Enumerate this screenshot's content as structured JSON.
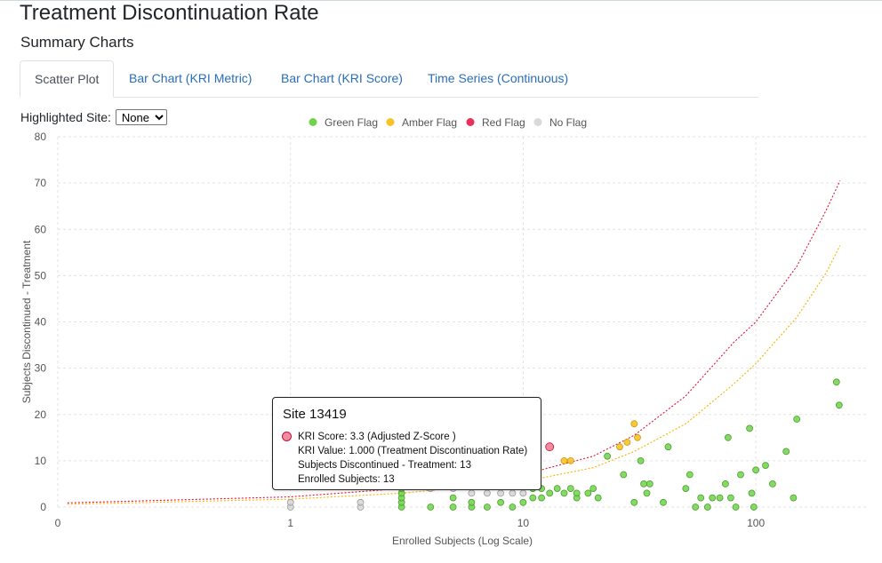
{
  "page": {
    "title": "Treatment Discontinuation Rate",
    "subtitle": "Summary Charts"
  },
  "tabs": [
    {
      "label": "Scatter Plot",
      "active": true
    },
    {
      "label": "Bar Chart (KRI Metric)",
      "active": false
    },
    {
      "label": "Bar Chart (KRI Score)",
      "active": false
    },
    {
      "label": "Time Series (Continuous)",
      "active": false
    }
  ],
  "site_filter": {
    "label": "Highlighted Site:",
    "selected": "None"
  },
  "colors": {
    "green": "#6fd44a",
    "green_stroke": "#4a9e2e",
    "amber": "#f7c325",
    "amber_stroke": "#c99a10",
    "red": "#f28b9f",
    "red_stroke": "#c0143c",
    "grey": "#cfcfcf",
    "grey_stroke": "#9a9a9a",
    "red_line": "#dc143c",
    "amber_line": "#f5b400",
    "tab_link": "#2a6ebb"
  },
  "tooltip": {
    "title": "Site 13419",
    "lines": [
      "KRI Score: 3.3 (Adjusted Z-Score )",
      "KRI Value: 1.000 (Treatment Discontinuation Rate)",
      "Subjects Discontinued - Treatment: 13",
      "Enrolled Subjects: 13"
    ]
  },
  "chart_data": {
    "type": "scatter",
    "xlabel": "Enrolled Subjects (Log Scale)",
    "ylabel": "Subjects Discontinued - Treatment",
    "x_scale": "log",
    "xlim": [
      0.1,
      300
    ],
    "ylim": [
      0,
      80
    ],
    "x_ticks": [
      {
        "value": 0.1,
        "label": "0"
      },
      {
        "value": 1,
        "label": "1"
      },
      {
        "value": 10,
        "label": "10"
      },
      {
        "value": 100,
        "label": "100"
      }
    ],
    "y_ticks": [
      0,
      10,
      20,
      30,
      40,
      50,
      60,
      70,
      80
    ],
    "grid": true,
    "legend_position": "top-center",
    "legend": [
      {
        "name": "Green Flag",
        "color": "#6fd44a"
      },
      {
        "name": "Amber Flag",
        "color": "#f7c325"
      },
      {
        "name": "Red Flag",
        "color": "#e8305a"
      },
      {
        "name": "No Flag",
        "color": "#d9d9d9"
      }
    ],
    "threshold_lines": [
      {
        "name": "red",
        "points": [
          [
            0.11,
            0.9
          ],
          [
            1,
            2.2
          ],
          [
            3,
            4.0
          ],
          [
            10,
            7.0
          ],
          [
            20,
            11.0
          ],
          [
            30,
            15.5
          ],
          [
            50,
            24.0
          ],
          [
            80,
            35.5
          ],
          [
            100,
            40.0
          ],
          [
            150,
            52.0
          ],
          [
            200,
            64.0
          ],
          [
            230,
            70.5
          ]
        ]
      },
      {
        "name": "amber",
        "points": [
          [
            0.11,
            0.6
          ],
          [
            1,
            1.7
          ],
          [
            3,
            3.0
          ],
          [
            10,
            5.5
          ],
          [
            20,
            8.5
          ],
          [
            30,
            12.0
          ],
          [
            50,
            18.0
          ],
          [
            80,
            26.5
          ],
          [
            100,
            31.0
          ],
          [
            150,
            41.0
          ],
          [
            200,
            50.5
          ],
          [
            230,
            56.5
          ]
        ]
      }
    ],
    "series": [
      {
        "name": "Green Flag",
        "points": [
          [
            3,
            0
          ],
          [
            3,
            1
          ],
          [
            3,
            2
          ],
          [
            3,
            3
          ],
          [
            3,
            4
          ],
          [
            4,
            0
          ],
          [
            5,
            0
          ],
          [
            5,
            2
          ],
          [
            6,
            0
          ],
          [
            6,
            1
          ],
          [
            7,
            0
          ],
          [
            8,
            1
          ],
          [
            9,
            0
          ],
          [
            10,
            1
          ],
          [
            11,
            2
          ],
          [
            11,
            4
          ],
          [
            11,
            7
          ],
          [
            12,
            2
          ],
          [
            12,
            4
          ],
          [
            13,
            3
          ],
          [
            14,
            4
          ],
          [
            15,
            3
          ],
          [
            16,
            4
          ],
          [
            17,
            2
          ],
          [
            17,
            3
          ],
          [
            19,
            3
          ],
          [
            20,
            4
          ],
          [
            21,
            2
          ],
          [
            23,
            11
          ],
          [
            27,
            7
          ],
          [
            30,
            1
          ],
          [
            32,
            10
          ],
          [
            33,
            5
          ],
          [
            34,
            3
          ],
          [
            35,
            5
          ],
          [
            40,
            1
          ],
          [
            42,
            13
          ],
          [
            50,
            4
          ],
          [
            52,
            7
          ],
          [
            55,
            0
          ],
          [
            58,
            2
          ],
          [
            62,
            0
          ],
          [
            65,
            2
          ],
          [
            70,
            2
          ],
          [
            74,
            5
          ],
          [
            76,
            15
          ],
          [
            78,
            2
          ],
          [
            82,
            0
          ],
          [
            86,
            7
          ],
          [
            94,
            17
          ],
          [
            96,
            3
          ],
          [
            98,
            0
          ],
          [
            100,
            8
          ],
          [
            110,
            9
          ],
          [
            118,
            5
          ],
          [
            135,
            12
          ],
          [
            145,
            2
          ],
          [
            150,
            19
          ],
          [
            222,
            27
          ],
          [
            228,
            22
          ]
        ]
      },
      {
        "name": "Amber Flag",
        "points": [
          [
            15,
            10
          ],
          [
            16,
            10
          ],
          [
            26,
            13
          ],
          [
            28,
            14
          ],
          [
            30,
            18
          ],
          [
            31,
            15
          ]
        ]
      },
      {
        "name": "Red Flag",
        "points": [
          [
            13,
            13
          ]
        ]
      },
      {
        "name": "No Flag",
        "points": [
          [
            1,
            0
          ],
          [
            1,
            1
          ],
          [
            2,
            0
          ],
          [
            2,
            1
          ],
          [
            4,
            4
          ],
          [
            5,
            4
          ],
          [
            6,
            3
          ],
          [
            7,
            3
          ],
          [
            8,
            3
          ],
          [
            9,
            3
          ],
          [
            10,
            3
          ],
          [
            11,
            4
          ],
          [
            8,
            8
          ]
        ]
      }
    ]
  }
}
